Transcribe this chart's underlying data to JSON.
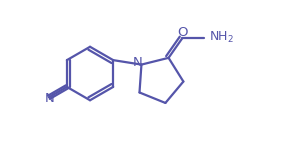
{
  "background": "#ffffff",
  "line_color": "#5555aa",
  "text_color": "#5555aa",
  "line_width": 1.6,
  "font_size": 8.5,
  "figsize": [
    2.96,
    1.5
  ],
  "dpi": 100,
  "xlim": [
    0.0,
    3.0
  ],
  "ylim": [
    0.0,
    2.0
  ]
}
